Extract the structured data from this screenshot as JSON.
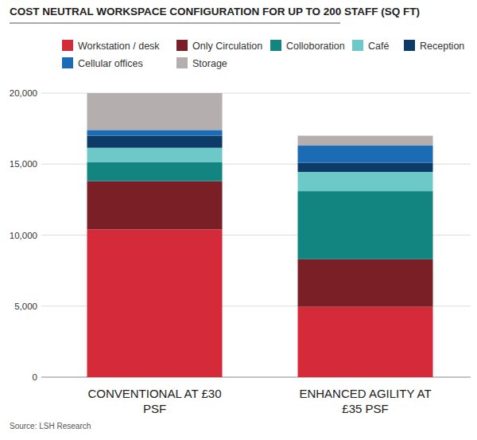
{
  "chart_data": {
    "type": "bar",
    "stacked": true,
    "grid": true,
    "title": "COST NEUTRAL WORKSPACE CONFIGURATION FOR UP TO 200 STAFF (SQ FT)",
    "source": "Source: LSH Research",
    "categories": [
      "CONVENTIONAL AT £30 PSF",
      "ENHANCED AGILITY AT £35 PSF"
    ],
    "series": [
      {
        "name": "Workstation / desk",
        "color": "#d42a3a",
        "values": [
          10400,
          4950
        ]
      },
      {
        "name": "Only Circulation",
        "color": "#7b1f27",
        "values": [
          3400,
          3350
        ]
      },
      {
        "name": "Colloboration",
        "color": "#138580",
        "values": [
          1350,
          4800
        ]
      },
      {
        "name": "Café",
        "color": "#6cc9c8",
        "values": [
          1000,
          1350
        ]
      },
      {
        "name": "Reception",
        "color": "#0c3b68",
        "values": [
          850,
          650
        ]
      },
      {
        "name": "Cellular offices",
        "color": "#1b6bb5",
        "values": [
          400,
          1200
        ]
      },
      {
        "name": "Storage",
        "color": "#b4aeae",
        "values": [
          2600,
          700
        ]
      }
    ],
    "ylim": [
      0,
      20000
    ],
    "yticks": [
      0,
      {
        "value": 5000,
        "label": "5,000"
      },
      {
        "value": 10000,
        "label": "10,000"
      },
      {
        "value": 15000,
        "label": "15,000"
      },
      {
        "value": 20000,
        "label": "20,000"
      }
    ]
  }
}
